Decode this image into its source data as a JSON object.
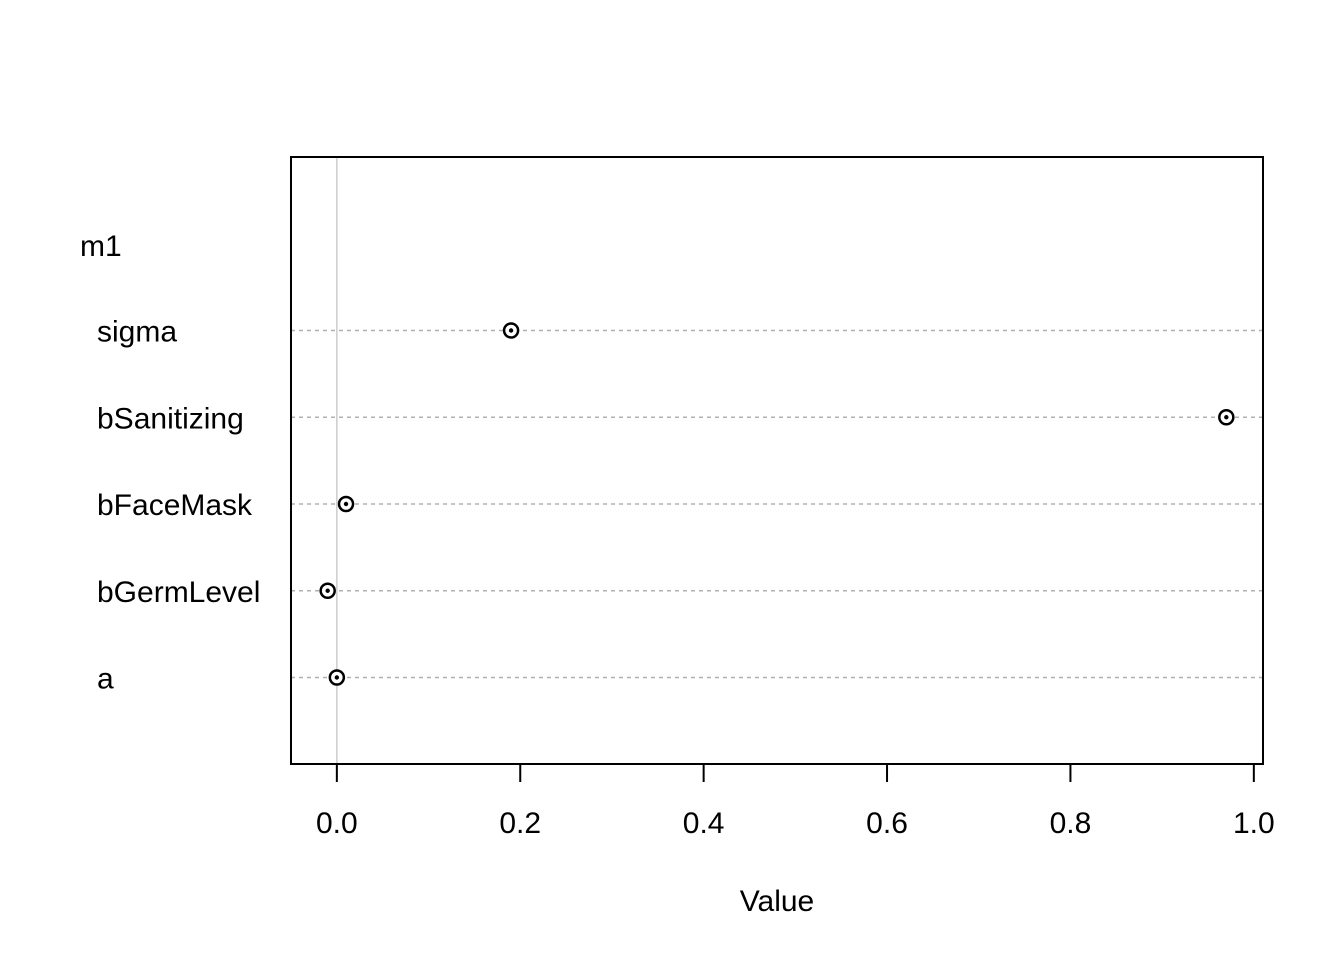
{
  "chart_data": {
    "type": "scatter",
    "group_label": "m1",
    "rows": [
      {
        "label": "sigma",
        "value": 0.19
      },
      {
        "label": "bSanitizing",
        "value": 0.97
      },
      {
        "label": "bFaceMask",
        "value": 0.01
      },
      {
        "label": "bGermLevel",
        "value": -0.01
      },
      {
        "label": "a",
        "value": 0.0
      }
    ],
    "xlabel": "Value",
    "xlim": [
      -0.05,
      1.01
    ],
    "xticks": [
      0.0,
      0.2,
      0.4,
      0.6,
      0.8,
      1.0
    ],
    "xtick_labels": [
      "0.0",
      "0.2",
      "0.4",
      "0.6",
      "0.8",
      "1.0"
    ],
    "reference_line_x": 0,
    "grid": "dotted horizontal lines per row",
    "colors": {
      "marker": "#000000",
      "reference_line": "#cccccc",
      "row_guides": "#b0b0b0",
      "frame": "#000000"
    }
  }
}
